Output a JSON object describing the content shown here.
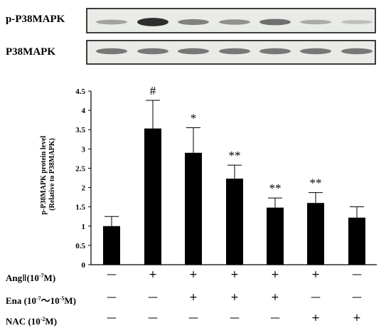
{
  "blots": [
    {
      "label": "p-P38MAPK",
      "band_intensity": [
        0.25,
        0.95,
        0.45,
        0.35,
        0.55,
        0.2,
        0.08
      ]
    },
    {
      "label": "P38MAPK",
      "band_intensity": [
        0.5,
        0.5,
        0.5,
        0.5,
        0.5,
        0.5,
        0.5
      ]
    }
  ],
  "chart_data": {
    "type": "bar",
    "title": "",
    "xlabel": "",
    "ylabel": "p-P38MAPK protein level\n(Relative to P38MAPK)",
    "ylim": [
      0,
      4.5
    ],
    "yticks": [
      "0",
      "0.5",
      "1",
      "1.5",
      "2",
      "2.5",
      "3",
      "3.5",
      "4",
      "4.5"
    ],
    "values": [
      1.0,
      3.53,
      2.9,
      2.23,
      1.48,
      1.6,
      1.22
    ],
    "errors": [
      0.25,
      0.73,
      0.65,
      0.35,
      0.25,
      0.27,
      0.28
    ],
    "significance": [
      "",
      "#",
      "*",
      "**",
      "**",
      "**",
      ""
    ],
    "bar_color": "#000000",
    "grid": false
  },
  "treatments": [
    {
      "label": "AngⅡ(10-7M)",
      "marks": [
        "—",
        "+",
        "+",
        "+",
        "+",
        "+",
        "—"
      ]
    },
    {
      "label": "Ena (10-7～10-5M)",
      "marks": [
        "—",
        "—",
        "+",
        "+",
        "+",
        "—",
        "—"
      ]
    },
    {
      "label": "NAC (10-2M)",
      "marks": [
        "—",
        "—",
        "—",
        "—",
        "—",
        "+",
        "+"
      ]
    }
  ]
}
